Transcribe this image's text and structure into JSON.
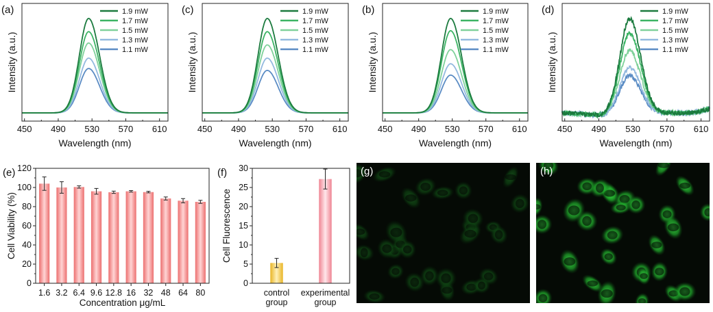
{
  "chart_data": [
    {
      "panel": "(a)",
      "type": "line",
      "xlabel": "Wavelength (nm)",
      "ylabel": "Intensity (a.u.)",
      "xlim": [
        447,
        620
      ],
      "xticks": [
        450,
        490,
        530,
        570,
        610
      ],
      "peak_center_nm": 526,
      "noisy": false,
      "series": [
        {
          "name": "1.9 mW",
          "color": "#1b7a3e",
          "peak": 1.0
        },
        {
          "name": "1.7 mW",
          "color": "#3cb464",
          "peak": 0.86
        },
        {
          "name": "1.5 mW",
          "color": "#7fd19a",
          "peak": 0.74
        },
        {
          "name": "1.3 mW",
          "color": "#93b9df",
          "peak": 0.58
        },
        {
          "name": "1.1 mW",
          "color": "#5b8cc4",
          "peak": 0.47
        }
      ]
    },
    {
      "panel": "(c)",
      "type": "line",
      "xlabel": "Wavelength (nm)",
      "ylabel": "Intensity (a.u.)",
      "xlim": [
        447,
        620
      ],
      "xticks": [
        450,
        490,
        530,
        570,
        610
      ],
      "peak_center_nm": 524,
      "noisy": false,
      "series": [
        {
          "name": "1.9 mW",
          "color": "#1b7a3e",
          "peak": 1.0
        },
        {
          "name": "1.7 mW",
          "color": "#3cb464",
          "peak": 0.86
        },
        {
          "name": "1.5 mW",
          "color": "#7fd19a",
          "peak": 0.72
        },
        {
          "name": "1.3 mW",
          "color": "#93b9df",
          "peak": 0.58
        },
        {
          "name": "1.1 mW",
          "color": "#5b8cc4",
          "peak": 0.45
        }
      ]
    },
    {
      "panel": "(b)",
      "type": "line",
      "xlabel": "Wavelength (nm)",
      "ylabel": "Intensity (a.u.)",
      "xlim": [
        447,
        620
      ],
      "xticks": [
        450,
        490,
        530,
        570,
        610
      ],
      "peak_center_nm": 528,
      "noisy": false,
      "series": [
        {
          "name": "1.9 mW",
          "color": "#1b7a3e",
          "peak": 1.0
        },
        {
          "name": "1.7 mW",
          "color": "#3cb464",
          "peak": 0.87
        },
        {
          "name": "1.5 mW",
          "color": "#7fd19a",
          "peak": 0.67
        },
        {
          "name": "1.3 mW",
          "color": "#93b9df",
          "peak": 0.52
        },
        {
          "name": "1.1 mW",
          "color": "#5b8cc4",
          "peak": 0.4
        }
      ]
    },
    {
      "panel": "(d)",
      "type": "line",
      "xlabel": "Wavelength (nm)",
      "ylabel": "Intensity (a.u.)",
      "xlim": [
        447,
        620
      ],
      "xticks": [
        450,
        490,
        530,
        570,
        610
      ],
      "peak_center_nm": 526,
      "noisy": true,
      "series": [
        {
          "name": "1.9 mW",
          "color": "#1b7a3e",
          "peak": 1.0
        },
        {
          "name": "1.7 mW",
          "color": "#3cb464",
          "peak": 0.85
        },
        {
          "name": "1.5 mW",
          "color": "#7fd19a",
          "peak": 0.66
        },
        {
          "name": "1.3 mW",
          "color": "#93b9df",
          "peak": 0.48
        },
        {
          "name": "1.1 mW",
          "color": "#5b8cc4",
          "peak": 0.4
        }
      ]
    },
    {
      "panel": "(e)",
      "type": "bar",
      "xlabel": "Concentration μg/mL",
      "ylabel": "Cell Viability (%)",
      "ylim": [
        0,
        120
      ],
      "yticks": [
        0,
        20,
        40,
        60,
        80,
        100,
        120
      ],
      "categories": [
        "1.6",
        "3.2",
        "6.4",
        "9.6",
        "12.8",
        "16",
        "32",
        "48",
        "64",
        "80"
      ],
      "values": [
        104,
        100,
        100.5,
        96,
        95,
        96,
        95.2,
        88.5,
        86.2,
        85
      ],
      "errors": [
        7,
        6,
        1.2,
        3,
        1.2,
        0.8,
        0.8,
        1.6,
        2.2,
        1.6
      ],
      "color": "#ef7b7b"
    },
    {
      "panel": "(f)",
      "type": "bar",
      "xlabel": "",
      "ylabel": "Cell Fluorescence",
      "ylim": [
        0,
        30
      ],
      "yticks": [
        0,
        5,
        10,
        15,
        20,
        25,
        30
      ],
      "categories": [
        [
          "control",
          "group"
        ],
        [
          "experimental",
          "group"
        ]
      ],
      "values": [
        5.3,
        27.2
      ],
      "errors": [
        1.2,
        2.6
      ],
      "colors": [
        "#eec13c",
        "#f08a96"
      ]
    }
  ],
  "images": [
    {
      "panel": "(g)",
      "brightness": 0.35
    },
    {
      "panel": "(h)",
      "brightness": 1.0
    }
  ]
}
